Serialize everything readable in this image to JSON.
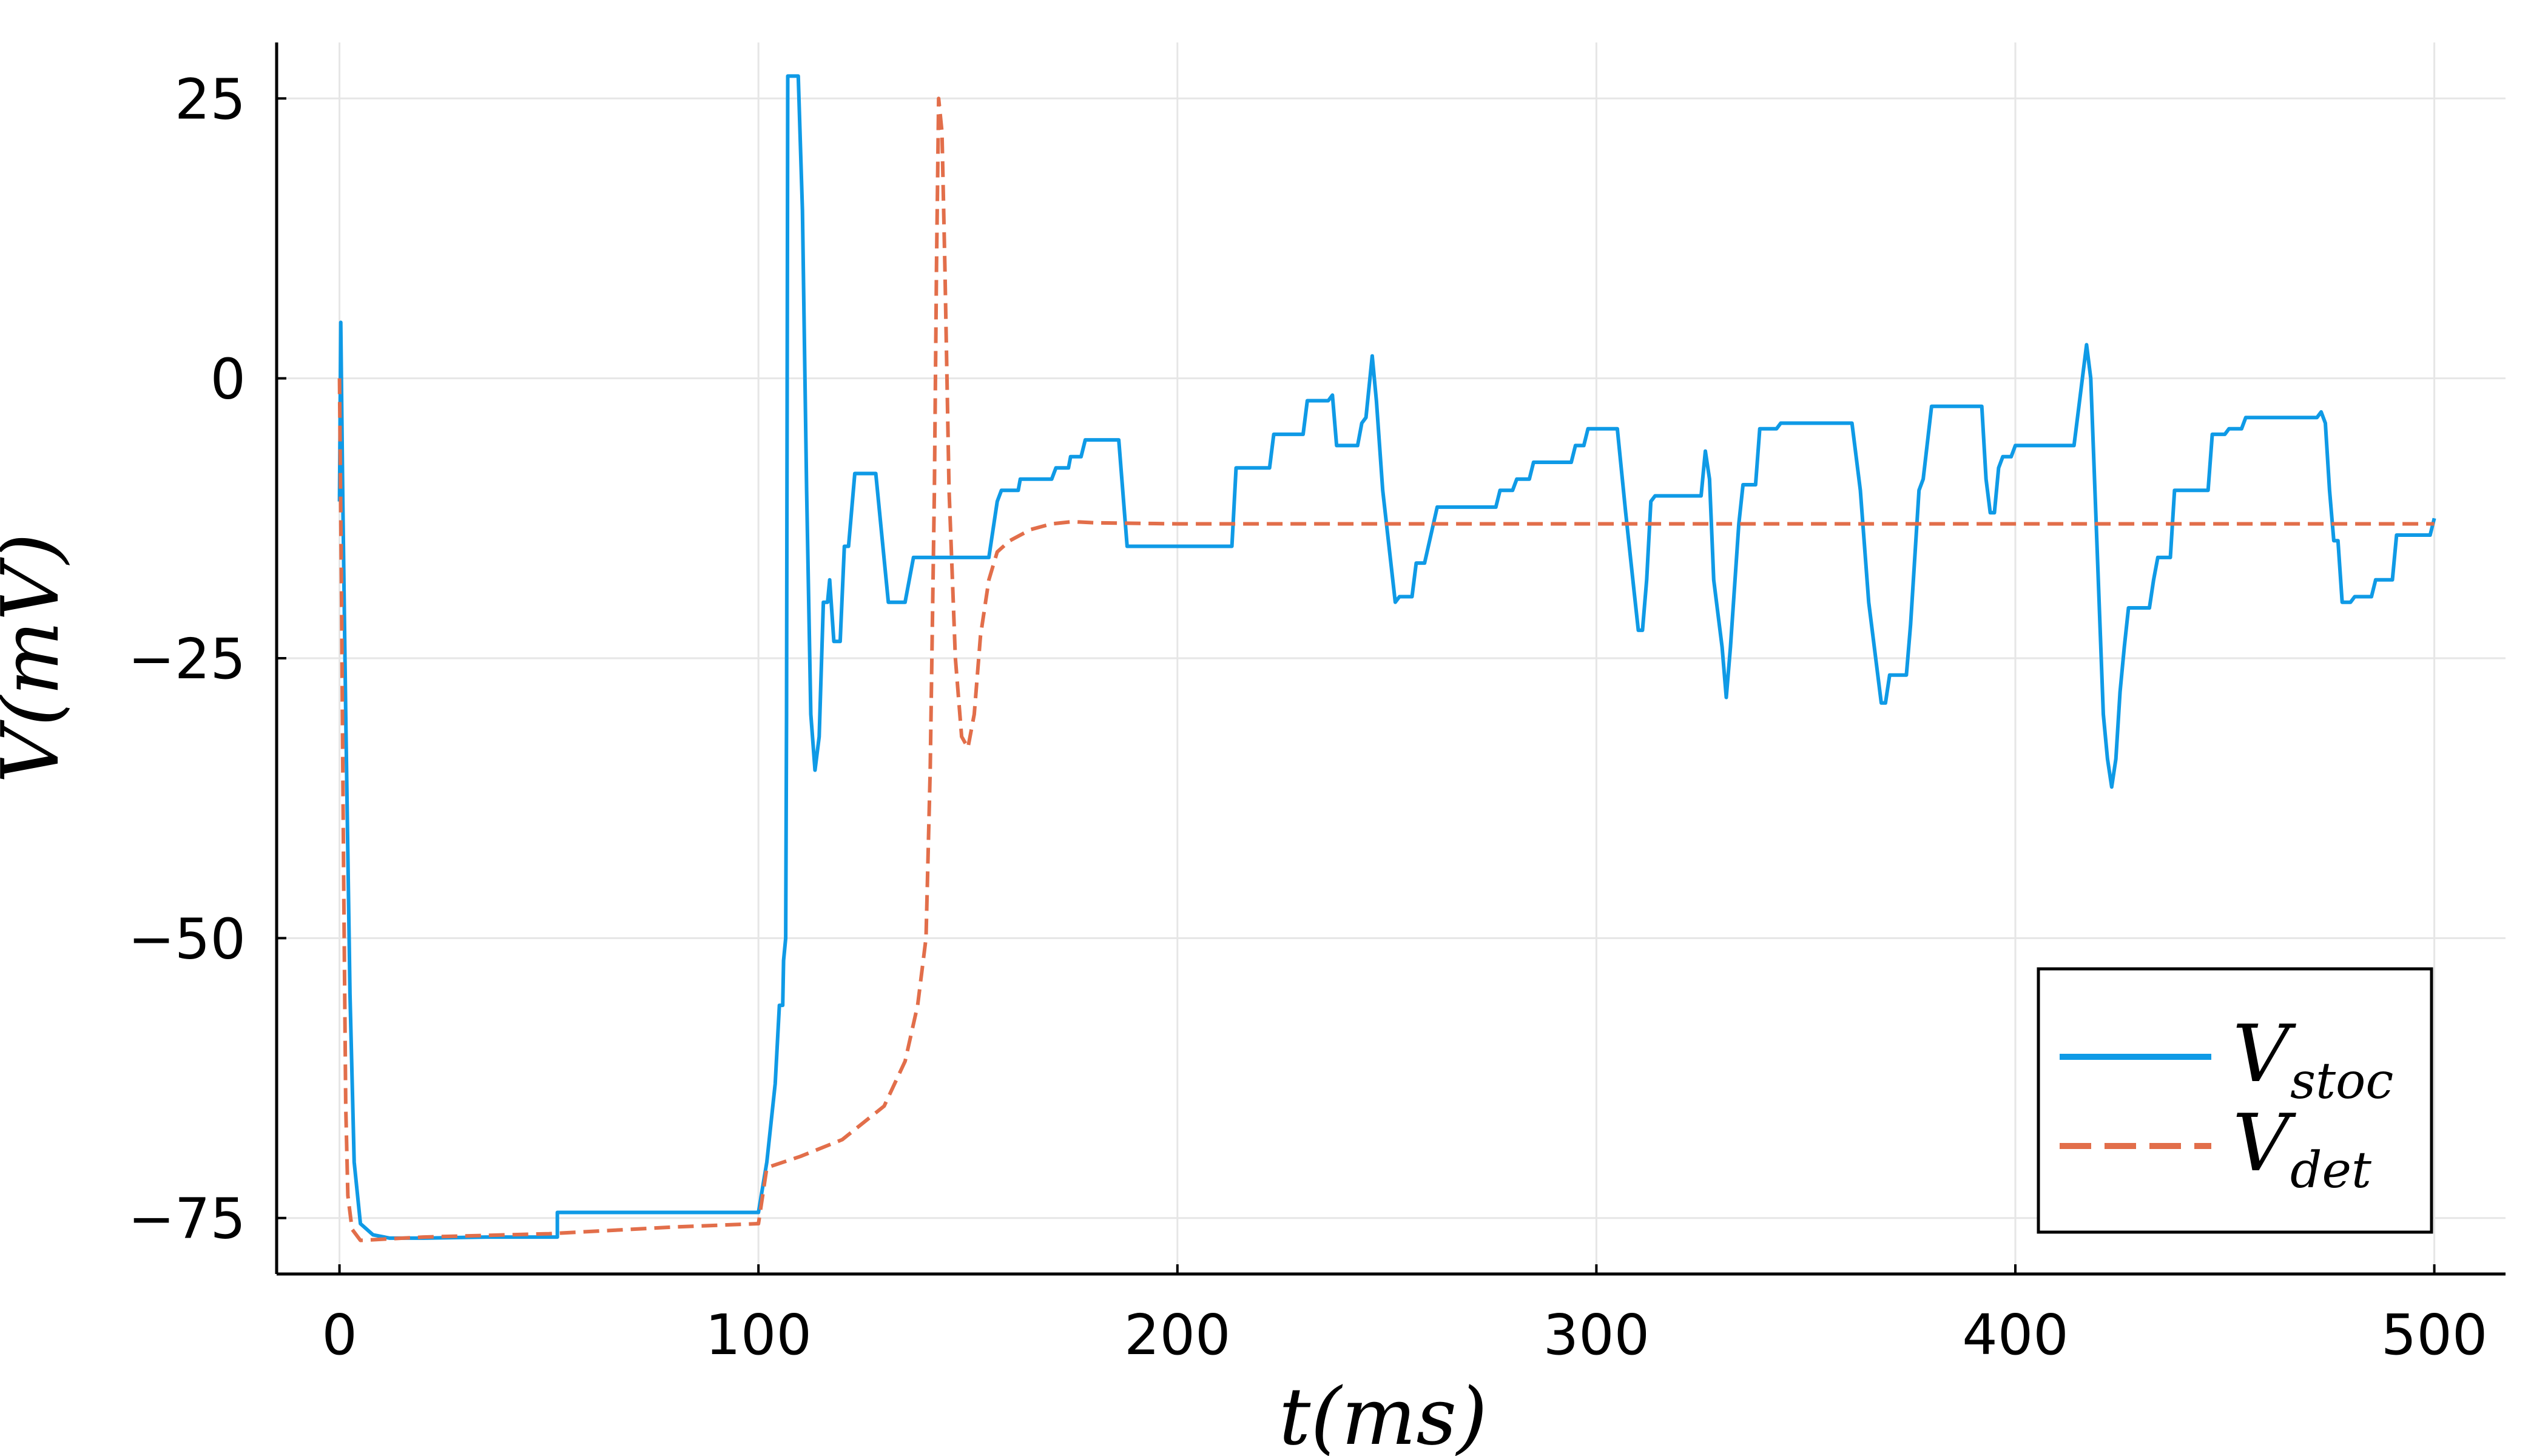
{
  "chart_data": {
    "type": "line",
    "xlabel": "t(ms)",
    "ylabel": "V(mV)",
    "xlim": [
      -15,
      517
    ],
    "ylim": [
      -80,
      30
    ],
    "xticks": [
      0,
      100,
      200,
      300,
      400,
      500
    ],
    "yticks": [
      25,
      0,
      -25,
      -50,
      -75
    ],
    "xtick_labels": [
      "0",
      "100",
      "200",
      "300",
      "400",
      "500"
    ],
    "ytick_labels": [
      "25",
      "0",
      "−25",
      "−50",
      "−75"
    ],
    "grid": true,
    "legend_position": "bottom-right",
    "colors": {
      "stoc": "#0f9ae6",
      "det": "#e26e4a"
    },
    "series": [
      {
        "key": "stoc",
        "name": "V",
        "subscript": "stoc",
        "style": "solid",
        "points": [
          [
            0,
            -11
          ],
          [
            0.3,
            5
          ],
          [
            0.8,
            -11
          ],
          [
            1.5,
            -30
          ],
          [
            2.5,
            -55
          ],
          [
            3.5,
            -70
          ],
          [
            5,
            -75.5
          ],
          [
            8,
            -76.5
          ],
          [
            12,
            -76.8
          ],
          [
            20,
            -76.8
          ],
          [
            35,
            -76.7
          ],
          [
            52,
            -76.7
          ],
          [
            52,
            -74.5
          ],
          [
            80,
            -74.5
          ],
          [
            100,
            -74.5
          ],
          [
            102,
            -70
          ],
          [
            104,
            -63
          ],
          [
            105,
            -56
          ],
          [
            105.8,
            -56
          ],
          [
            106,
            -52
          ],
          [
            106.5,
            -50
          ],
          [
            106.7,
            -30
          ],
          [
            107,
            27
          ],
          [
            109.5,
            27
          ],
          [
            110.5,
            15
          ],
          [
            111.5,
            -10
          ],
          [
            112.5,
            -30
          ],
          [
            113.5,
            -35
          ],
          [
            114.5,
            -32
          ],
          [
            115.5,
            -20
          ],
          [
            116.5,
            -20
          ],
          [
            117,
            -18
          ],
          [
            118,
            -23.5
          ],
          [
            119.5,
            -23.5
          ],
          [
            120.5,
            -15
          ],
          [
            121.5,
            -15
          ],
          [
            123,
            -8.5
          ],
          [
            128,
            -8.5
          ],
          [
            131,
            -20
          ],
          [
            135,
            -20
          ],
          [
            136,
            -18
          ],
          [
            137,
            -16
          ],
          [
            155,
            -16
          ],
          [
            157,
            -11
          ],
          [
            158,
            -10
          ],
          [
            162,
            -10
          ],
          [
            162.5,
            -9
          ],
          [
            170,
            -9
          ],
          [
            171,
            -8
          ],
          [
            174,
            -8
          ],
          [
            174.5,
            -7
          ],
          [
            177,
            -7
          ],
          [
            178,
            -5.5
          ],
          [
            186,
            -5.5
          ],
          [
            188,
            -15
          ],
          [
            213,
            -15
          ],
          [
            214,
            -8
          ],
          [
            222,
            -8
          ],
          [
            223,
            -5
          ],
          [
            230,
            -5
          ],
          [
            231,
            -2
          ],
          [
            236,
            -2
          ],
          [
            237,
            -1.5
          ],
          [
            238,
            -6
          ],
          [
            243,
            -6
          ],
          [
            244,
            -4
          ],
          [
            245,
            -3.5
          ],
          [
            246.5,
            2
          ],
          [
            247.5,
            -2
          ],
          [
            249,
            -10
          ],
          [
            252,
            -20
          ],
          [
            253,
            -19.5
          ],
          [
            256,
            -19.5
          ],
          [
            257,
            -16.5
          ],
          [
            259,
            -16.5
          ],
          [
            262,
            -11.5
          ],
          [
            276,
            -11.5
          ],
          [
            277,
            -10
          ],
          [
            280,
            -10
          ],
          [
            281,
            -9
          ],
          [
            284,
            -9
          ],
          [
            285,
            -7.5
          ],
          [
            294,
            -7.5
          ],
          [
            295,
            -6
          ],
          [
            297,
            -6
          ],
          [
            298,
            -4.5
          ],
          [
            305,
            -4.5
          ],
          [
            307,
            -12
          ],
          [
            309,
            -19
          ],
          [
            310,
            -22.5
          ],
          [
            311,
            -22.5
          ],
          [
            312,
            -18
          ],
          [
            313,
            -11
          ],
          [
            314,
            -10.5
          ],
          [
            325,
            -10.5
          ],
          [
            326,
            -6.5
          ],
          [
            327,
            -9
          ],
          [
            328,
            -18
          ],
          [
            330,
            -24
          ],
          [
            331,
            -28.5
          ],
          [
            332,
            -24
          ],
          [
            334,
            -13
          ],
          [
            335,
            -9.5
          ],
          [
            338,
            -9.5
          ],
          [
            339,
            -4.5
          ],
          [
            343,
            -4.5
          ],
          [
            344,
            -4
          ],
          [
            361,
            -4
          ],
          [
            363,
            -10
          ],
          [
            365,
            -20
          ],
          [
            367,
            -26
          ],
          [
            368,
            -29
          ],
          [
            369,
            -29
          ],
          [
            370,
            -26.5
          ],
          [
            374,
            -26.5
          ],
          [
            375,
            -22
          ],
          [
            377,
            -10
          ],
          [
            378,
            -9
          ],
          [
            380,
            -2.5
          ],
          [
            392,
            -2.5
          ],
          [
            393,
            -9
          ],
          [
            394,
            -12
          ],
          [
            395,
            -12
          ],
          [
            396,
            -8
          ],
          [
            397,
            -7
          ],
          [
            399,
            -7
          ],
          [
            400,
            -6
          ],
          [
            414,
            -6
          ],
          [
            416,
            0
          ],
          [
            417,
            3
          ],
          [
            418,
            0
          ],
          [
            419,
            -10
          ],
          [
            420,
            -20
          ],
          [
            421,
            -30
          ],
          [
            422,
            -34
          ],
          [
            423,
            -36.5
          ],
          [
            424,
            -34
          ],
          [
            425,
            -28
          ],
          [
            426,
            -24
          ],
          [
            427,
            -20.5
          ],
          [
            432,
            -20.5
          ],
          [
            433,
            -18
          ],
          [
            434,
            -16
          ],
          [
            437,
            -16
          ],
          [
            438,
            -10
          ],
          [
            446,
            -10
          ],
          [
            447,
            -5
          ],
          [
            450,
            -5
          ],
          [
            451,
            -4.5
          ],
          [
            454,
            -4.5
          ],
          [
            455,
            -3.5
          ],
          [
            472,
            -3.5
          ],
          [
            473,
            -3
          ],
          [
            474,
            -4
          ],
          [
            475,
            -10
          ],
          [
            476,
            -14.5
          ],
          [
            477,
            -14.5
          ],
          [
            478,
            -20
          ],
          [
            480,
            -20
          ],
          [
            481,
            -19.5
          ],
          [
            485,
            -19.5
          ],
          [
            486,
            -18
          ],
          [
            490,
            -18
          ],
          [
            491,
            -14
          ],
          [
            499,
            -14
          ],
          [
            500,
            -12.5
          ]
        ]
      },
      {
        "key": "det",
        "name": "V",
        "subscript": "det",
        "style": "dashed",
        "points": [
          [
            0,
            0
          ],
          [
            0.5,
            -20
          ],
          [
            1,
            -45
          ],
          [
            1.5,
            -65
          ],
          [
            2,
            -73
          ],
          [
            3,
            -76
          ],
          [
            5,
            -77
          ],
          [
            20,
            -76.7
          ],
          [
            50,
            -76.4
          ],
          [
            80,
            -75.8
          ],
          [
            100,
            -75.5
          ],
          [
            102,
            -70.5
          ],
          [
            110,
            -69.5
          ],
          [
            120,
            -68
          ],
          [
            130,
            -65
          ],
          [
            135,
            -61
          ],
          [
            138,
            -56
          ],
          [
            140,
            -50
          ],
          [
            141,
            -35
          ],
          [
            142,
            -10
          ],
          [
            142.5,
            10
          ],
          [
            143,
            25
          ],
          [
            143.8,
            22
          ],
          [
            144.5,
            10
          ],
          [
            145.5,
            -10
          ],
          [
            147,
            -25
          ],
          [
            148.5,
            -32
          ],
          [
            150,
            -33
          ],
          [
            151.5,
            -30
          ],
          [
            153,
            -23
          ],
          [
            155,
            -18
          ],
          [
            157,
            -15.5
          ],
          [
            160,
            -14.5
          ],
          [
            165,
            -13.5
          ],
          [
            170,
            -13
          ],
          [
            175,
            -12.8
          ],
          [
            180,
            -12.9
          ],
          [
            200,
            -13
          ],
          [
            300,
            -13
          ],
          [
            400,
            -13
          ],
          [
            500,
            -13
          ]
        ]
      }
    ]
  }
}
